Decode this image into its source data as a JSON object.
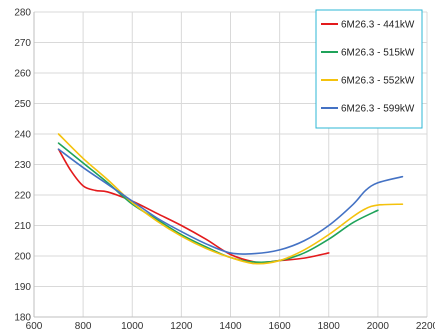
{
  "chart_data": {
    "type": "line",
    "title": "",
    "xlabel": "",
    "ylabel": "",
    "xlim": [
      600,
      2200
    ],
    "ylim": [
      180,
      280
    ],
    "x_ticks": [
      600,
      800,
      1000,
      1200,
      1400,
      1600,
      1800,
      2000,
      2200
    ],
    "y_ticks": [
      180,
      190,
      200,
      210,
      220,
      230,
      240,
      250,
      260,
      270,
      280
    ],
    "grid": true,
    "legend_position": "top-right",
    "series": [
      {
        "name": "6M26.3 - 441kW",
        "color": "#e31a1c",
        "points": [
          [
            700,
            235
          ],
          [
            750,
            228
          ],
          [
            800,
            223
          ],
          [
            850,
            221.5
          ],
          [
            900,
            221
          ],
          [
            1000,
            218
          ],
          [
            1100,
            214
          ],
          [
            1200,
            210
          ],
          [
            1300,
            205.5
          ],
          [
            1400,
            200.5
          ],
          [
            1500,
            198
          ],
          [
            1550,
            198
          ],
          [
            1600,
            198.5
          ],
          [
            1700,
            199.3
          ],
          [
            1800,
            201
          ]
        ]
      },
      {
        "name": "6M26.3 - 515kW",
        "color": "#1fa35a",
        "points": [
          [
            700,
            237
          ],
          [
            800,
            230.5
          ],
          [
            900,
            224
          ],
          [
            1000,
            217
          ],
          [
            1100,
            212
          ],
          [
            1200,
            207
          ],
          [
            1300,
            203
          ],
          [
            1400,
            199.5
          ],
          [
            1500,
            198
          ],
          [
            1600,
            198.5
          ],
          [
            1700,
            201
          ],
          [
            1800,
            205.5
          ],
          [
            1900,
            211
          ],
          [
            2000,
            215
          ]
        ]
      },
      {
        "name": "6M26.3 - 552kW",
        "color": "#f4c20d",
        "points": [
          [
            700,
            240
          ],
          [
            800,
            232
          ],
          [
            900,
            225
          ],
          [
            1000,
            217.5
          ],
          [
            1100,
            211.5
          ],
          [
            1200,
            206.5
          ],
          [
            1300,
            202.5
          ],
          [
            1400,
            199.5
          ],
          [
            1500,
            197.5
          ],
          [
            1600,
            198.5
          ],
          [
            1700,
            202
          ],
          [
            1800,
            207
          ],
          [
            1900,
            213
          ],
          [
            1950,
            215.5
          ],
          [
            2000,
            216.7
          ],
          [
            2100,
            217
          ]
        ]
      },
      {
        "name": "6M26.3 - 599kW",
        "color": "#4472c4",
        "points": [
          [
            700,
            235
          ],
          [
            800,
            229
          ],
          [
            900,
            223.5
          ],
          [
            1000,
            218
          ],
          [
            1100,
            212.5
          ],
          [
            1200,
            208
          ],
          [
            1300,
            204
          ],
          [
            1400,
            201
          ],
          [
            1500,
            200.8
          ],
          [
            1600,
            202
          ],
          [
            1700,
            205
          ],
          [
            1800,
            210
          ],
          [
            1900,
            217
          ],
          [
            1950,
            221.5
          ],
          [
            2000,
            224
          ],
          [
            2100,
            226
          ]
        ]
      }
    ]
  }
}
